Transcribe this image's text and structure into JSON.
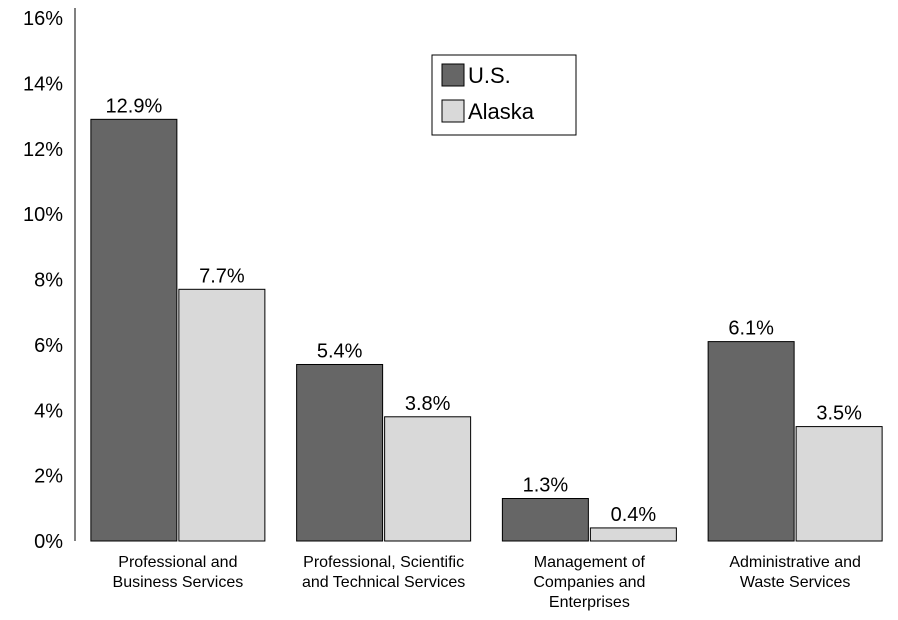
{
  "chart_data": {
    "type": "bar",
    "categories": [
      "Professional and\nBusiness Services",
      "Professional, Scientific\nand Technical Services",
      "Management of\nCompanies and\nEnterprises",
      "Administrative and\nWaste Services"
    ],
    "series": [
      {
        "name": "U.S.",
        "color": "#666666",
        "values": [
          12.9,
          5.4,
          1.3,
          6.1
        ],
        "value_labels": [
          "12.9%",
          "5.4%",
          "1.3%",
          "6.1%"
        ]
      },
      {
        "name": "Alaska",
        "color": "#d9d9d9",
        "values": [
          7.7,
          3.8,
          0.4,
          3.5
        ],
        "value_labels": [
          "7.7%",
          "3.8%",
          "0.4%",
          "3.5%"
        ]
      }
    ],
    "ylim": [
      0,
      16
    ],
    "yticks": [
      {
        "value": 0,
        "label": "0%"
      },
      {
        "value": 2,
        "label": "2%"
      },
      {
        "value": 4,
        "label": "4%"
      },
      {
        "value": 6,
        "label": "6%"
      },
      {
        "value": 8,
        "label": "8%"
      },
      {
        "value": 10,
        "label": "10%"
      },
      {
        "value": 12,
        "label": "12%"
      },
      {
        "value": 14,
        "label": "14%"
      },
      {
        "value": 16,
        "label": "16%"
      }
    ],
    "grid": false,
    "legend": "top"
  }
}
